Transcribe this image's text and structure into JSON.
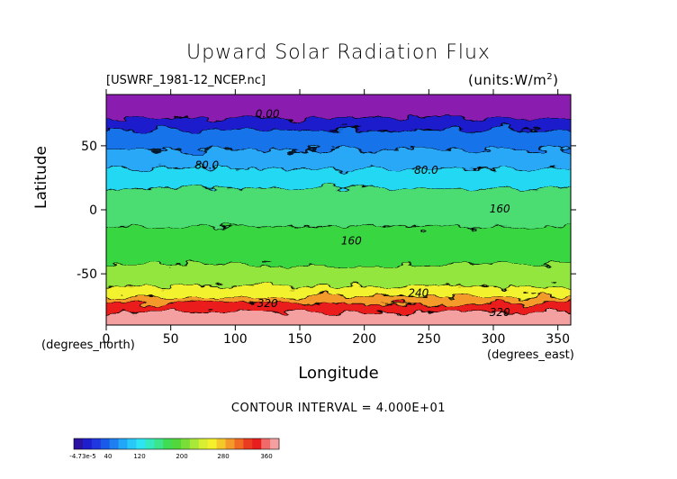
{
  "chart_data": {
    "type": "heatmap",
    "title": "Upward Solar Radiation Flux",
    "source_label": "[USWRF_1981-12_NCEP.nc]",
    "units_label": "(units:W/m^2)",
    "units_prefix": "(units:W/m",
    "units_power": "2",
    "units_suffix": ")",
    "xlabel": "Longitude",
    "ylabel": "Latitude",
    "x_note": "(degrees_east)",
    "y_note": "(degrees_north)",
    "xlim": [
      0,
      360
    ],
    "ylim": [
      -90,
      90
    ],
    "x_ticks": [
      0,
      50,
      100,
      150,
      200,
      250,
      300,
      350
    ],
    "y_ticks": [
      -50,
      0,
      50
    ],
    "contour_interval_text": "CONTOUR INTERVAL = 4.000E+01",
    "contour_labels": [
      {
        "text": "0.00",
        "lon": 125,
        "lat": 72
      },
      {
        "text": "80.0",
        "lon": 78,
        "lat": 32
      },
      {
        "text": "80.0",
        "lon": 248,
        "lat": 28
      },
      {
        "text": "160",
        "lon": 305,
        "lat": -2
      },
      {
        "text": "160",
        "lon": 190,
        "lat": -27
      },
      {
        "text": "240",
        "lon": 242,
        "lat": -68
      },
      {
        "text": "320",
        "lon": 125,
        "lat": -76
      },
      {
        "text": "320",
        "lon": 305,
        "lat": -83
      }
    ],
    "bands": [
      {
        "lat": [
          70,
          90
        ],
        "value": 0,
        "color": "#8a1fb0"
      },
      {
        "lat": [
          60,
          70
        ],
        "value": 20,
        "color": "#1a1acc"
      },
      {
        "lat": [
          45,
          60
        ],
        "value": 50,
        "color": "#1473ea"
      },
      {
        "lat": [
          30,
          45
        ],
        "value": 75,
        "color": "#2aa8f8"
      },
      {
        "lat": [
          15,
          30
        ],
        "value": 100,
        "color": "#24d8f2"
      },
      {
        "lat": [
          -15,
          15
        ],
        "value": 150,
        "color": "#4cdc72"
      },
      {
        "lat": [
          -45,
          -15
        ],
        "value": 170,
        "color": "#38d640"
      },
      {
        "lat": [
          -62,
          -45
        ],
        "value": 210,
        "color": "#92e63e"
      },
      {
        "lat": [
          -70,
          -62
        ],
        "value": 250,
        "color": "#f2f22e"
      },
      {
        "lat": [
          -75,
          -70
        ],
        "value": 290,
        "color": "#f49a2a"
      },
      {
        "lat": [
          -82,
          -75
        ],
        "value": 330,
        "color": "#ea1d1d"
      },
      {
        "lat": [
          -90,
          -82
        ],
        "value": 360,
        "color": "#f5a0a0"
      }
    ],
    "colorbar": {
      "labels": [
        "-4.73e-5",
        "40",
        "120",
        "200",
        "280",
        "360"
      ],
      "colors": [
        "#2c12a0",
        "#1e1ecc",
        "#2036e0",
        "#1a5ae8",
        "#1e80f0",
        "#22a6f8",
        "#28c8f8",
        "#2ee4f2",
        "#34e8c0",
        "#3ce48c",
        "#40dc54",
        "#52d83a",
        "#7ade38",
        "#a8e838",
        "#d8ee30",
        "#f4f02c",
        "#f4c82a",
        "#f49a2a",
        "#f06a24",
        "#ea3a20",
        "#e81e1e",
        "#f06a6a",
        "#f5a0a0"
      ]
    }
  }
}
